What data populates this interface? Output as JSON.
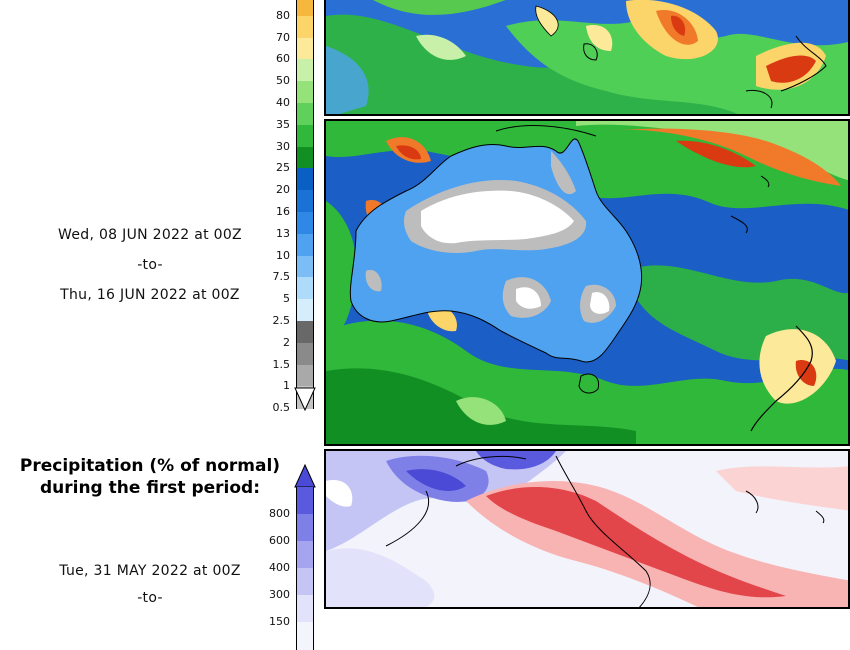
{
  "legend_precip": {
    "labels": [
      "80",
      "70",
      "60",
      "50",
      "40",
      "35",
      "30",
      "25",
      "20",
      "16",
      "13",
      "10",
      "7.5",
      "5",
      "2.5",
      "2",
      "1.5",
      "1",
      "0.5"
    ],
    "colors": [
      "#f5b73c",
      "#fbd46a",
      "#fce99a",
      "#c8f0a8",
      "#96e27a",
      "#5fd05a",
      "#2fb83a",
      "#118f23",
      "#0a5fc4",
      "#1b72d6",
      "#2f88e6",
      "#4ea2f0",
      "#7cbdf5",
      "#aedbf9",
      "#d6eefb",
      "#686868",
      "#8a8a8a",
      "#a9a9a9",
      "#c4c4c4"
    ],
    "arrow_color": "#ffffff"
  },
  "period_second": {
    "start": "Wed, 08 JUN 2022 at 00Z",
    "separator": "-to-",
    "end": "Thu, 16 JUN 2022 at 00Z"
  },
  "anomaly_section": {
    "title_line1": "Precipitation (% of normal)",
    "title_line2": "during the first period:",
    "labels": [
      "800",
      "600",
      "400",
      "300",
      "150"
    ],
    "colors": [
      "#5a5adf",
      "#7f7fe8",
      "#a5a5ef",
      "#c5c5f5",
      "#e2e2fa",
      "#f4f4fd"
    ],
    "arrow_color": "#4a4ad6",
    "start": "Tue, 31 MAY 2022 at 00Z",
    "separator": "-to-"
  },
  "maps": {
    "ocean_color": "#1e5fc8",
    "wet_color": "#2fb83a",
    "dry_color": "#bdbdbd",
    "heavy_color": "#d93a12",
    "below_normal_color": "#e2454a",
    "above_normal_color": "#4a4ad6"
  }
}
